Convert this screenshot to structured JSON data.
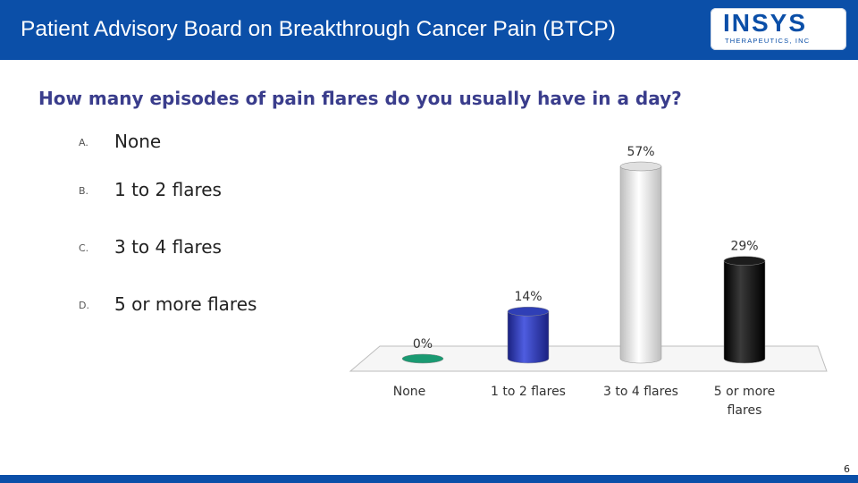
{
  "header": {
    "title": "Patient Advisory Board on Breakthrough Cancer Pain (BTCP)",
    "logo_text": "INSYS",
    "logo_subtitle": "THERAPEUTICS, INC"
  },
  "question": "How many episodes of pain flares do you usually have in a day?",
  "options": [
    {
      "letter": "A.",
      "text": "None"
    },
    {
      "letter": "B.",
      "text": "1 to 2 flares"
    },
    {
      "letter": "C.",
      "text": "3 to 4 flares"
    },
    {
      "letter": "D.",
      "text": "5 or more flares"
    }
  ],
  "chart_data": {
    "type": "bar",
    "style": "3d-cylinder",
    "categories": [
      [
        "None"
      ],
      [
        "1 to 2 flares"
      ],
      [
        "3 to 4 flares"
      ],
      [
        "5 or more",
        "flares"
      ]
    ],
    "values": [
      0,
      14,
      57,
      29
    ],
    "value_labels": [
      "0%",
      "14%",
      "57%",
      "29%"
    ],
    "colors": [
      "#1a9a72",
      "#2f3fb6",
      "#e0e0e0",
      "#1c1c1c"
    ],
    "ylim": [
      0,
      57
    ],
    "grid": false,
    "legend": "none"
  },
  "page_number": "6"
}
